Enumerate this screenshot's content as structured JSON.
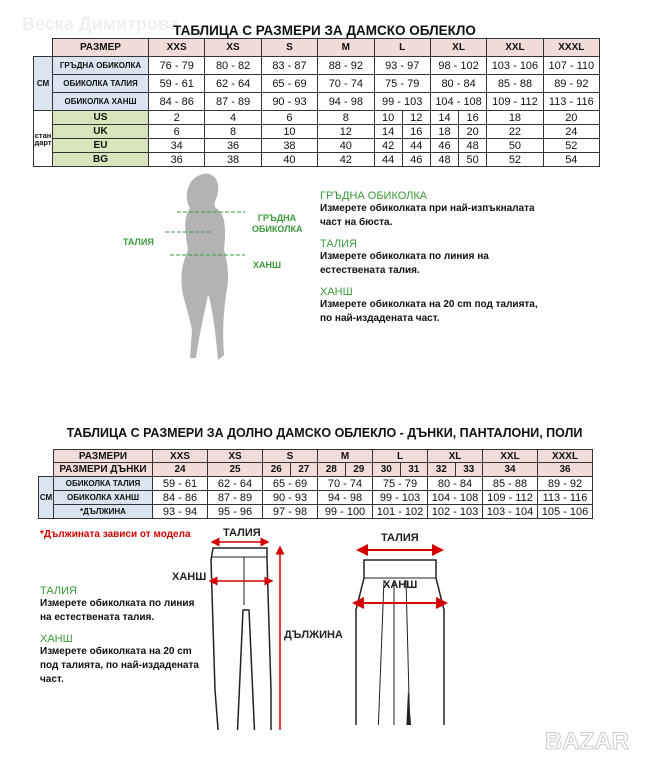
{
  "watermark": "Веска Димитрова",
  "logo": "BAZAR",
  "top": {
    "title": "ТАБЛИЦА С РАЗМЕРИ ЗА ДАМСКО ОБЛЕКЛО",
    "header_label": "РАЗМЕР",
    "sizes": [
      "XXS",
      "XS",
      "S",
      "M",
      "L",
      "XL",
      "XXL",
      "XXXL"
    ],
    "cm_label": "СМ",
    "standard_label": "стандарт",
    "cm_rows": [
      {
        "label": "ГРЪДНА ОБИКОЛКА",
        "values": [
          "76 - 79",
          "80 - 82",
          "83 - 87",
          "88 - 92",
          "93 - 97",
          "98 - 102",
          "103 - 106",
          "107 - 110"
        ]
      },
      {
        "label": "ОБИКОЛКА ТАЛИЯ",
        "values": [
          "59 - 61",
          "62 - 64",
          "65 - 69",
          "70 - 74",
          "75 - 79",
          "80 - 84",
          "85 - 88",
          "89 - 92"
        ]
      },
      {
        "label": "ОБИКОЛКА ХАНШ",
        "values": [
          "84 - 86",
          "87 - 89",
          "90 - 93",
          "94 - 98",
          "99 - 103",
          "104 - 108",
          "109 - 112",
          "113 - 116"
        ]
      }
    ],
    "std_rows": [
      {
        "label": "US",
        "values": [
          "2",
          "4",
          "6",
          "8",
          [
            "10",
            "12"
          ],
          [
            "14",
            "16"
          ],
          "18",
          "20"
        ]
      },
      {
        "label": "UK",
        "values": [
          "6",
          "8",
          "10",
          "12",
          [
            "14",
            "16"
          ],
          [
            "18",
            "20"
          ],
          "22",
          "24"
        ]
      },
      {
        "label": "EU",
        "values": [
          "34",
          "36",
          "38",
          "40",
          [
            "42",
            "44"
          ],
          [
            "46",
            "48"
          ],
          "50",
          "52"
        ]
      },
      {
        "label": "BG",
        "values": [
          "36",
          "38",
          "40",
          "42",
          [
            "44",
            "46"
          ],
          [
            "48",
            "50"
          ],
          "52",
          "54"
        ]
      }
    ]
  },
  "figure": {
    "bust": "ГРЪДНА ОБИКОЛКА",
    "waist": "ТАЛИЯ",
    "hip": "ХАНШ",
    "sections": [
      {
        "heading": "ГРЪДНА ОБИКОЛКА",
        "text": "Измерете обиколката при най-изпъкналата част на бюста."
      },
      {
        "heading": "ТАЛИЯ",
        "text": "Измерете обиколката по линия на естествената талия."
      },
      {
        "heading": "ХАНШ",
        "text": "Измерете обиколката на 20 cm под талията, по най-издадената част."
      }
    ]
  },
  "bottom": {
    "title": "ТАБЛИЦА С РАЗМЕРИ ЗА ДОЛНО ДАМСКО ОБЛЕКЛО - ДЪНКИ, ПАНТАЛОНИ, ПОЛИ",
    "header_label": "РАЗМЕРИ",
    "sizes": [
      "XXS",
      "XS",
      "S",
      "M",
      "L",
      "XL",
      "XXL",
      "XXXL"
    ],
    "jeans_label": "РАЗМЕРИ ДЪНКИ",
    "jeans": [
      "24",
      "25",
      [
        "26",
        "27"
      ],
      [
        "28",
        "29"
      ],
      [
        "30",
        "31"
      ],
      [
        "32",
        "33"
      ],
      "34",
      "36"
    ],
    "cm_label": "СМ",
    "rows": [
      {
        "label": "ОБИКОЛКА ТАЛИЯ",
        "values": [
          "59 - 61",
          "62 - 64",
          "65 - 69",
          "70 - 74",
          "75 - 79",
          "80 - 84",
          "85 - 88",
          "89 - 92"
        ]
      },
      {
        "label": "ОБИКОЛКА ХАНШ",
        "values": [
          "84 - 86",
          "87 - 89",
          "90 - 93",
          "94 - 98",
          "99 - 103",
          "104 - 108",
          "109 - 112",
          "113 - 116"
        ]
      },
      {
        "label": "*ДЪЛЖИНА",
        "values": [
          "93 - 94",
          "95 - 96",
          "97 - 98",
          "99 - 100",
          "101 - 102",
          "102 - 103",
          "103 - 104",
          "105 - 106"
        ]
      }
    ],
    "note": "*Дължината зависи от модела",
    "sections": [
      {
        "heading": "ТАЛИЯ",
        "text": "Измерете обиколката по линия на естествената талия."
      },
      {
        "heading": "ХАНШ",
        "text": "Измерете обиколката на 20 cm под талията, по най-издадената част."
      }
    ],
    "pants": {
      "waist": "ТАЛИЯ",
      "hip": "ХАНШ",
      "length": "ДЪЛЖИНА"
    },
    "skirt": {
      "waist": "ТАЛИЯ",
      "hip": "ХАНШ"
    }
  },
  "colors": {
    "header": "#f2dcdb",
    "label": "#dbe5f1",
    "standard": "#d7e4bc",
    "accent_green": "#3d9a3d",
    "accent_red": "#d40000"
  }
}
